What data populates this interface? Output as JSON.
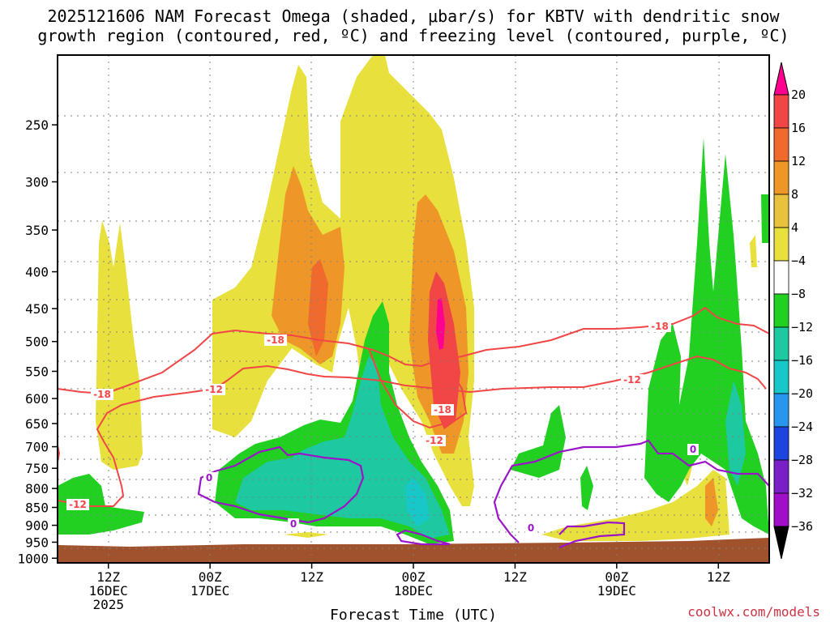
{
  "chart_data": {
    "type": "time-height cross-section (shaded field with contours)",
    "title_line1": "2025121606 NAM Forecast Omega (shaded, μbar/s) for KBTV with dendritic snow",
    "title_line2": "growth region (contoured, red, ºC) and freezing level (contoured, purple, ºC)",
    "xlabel": "Forecast Time (UTC)",
    "credit": "coolwx.com/models",
    "forecast_hour_range": [
      0,
      84
    ],
    "y_axis": {
      "unit": "hPa",
      "range": [
        1000,
        200
      ],
      "ticks": [
        250,
        300,
        350,
        400,
        450,
        500,
        550,
        600,
        650,
        700,
        750,
        800,
        850,
        900,
        950,
        1000
      ]
    },
    "x_ticks": [
      {
        "hour": 6,
        "line1": "12Z",
        "line2": "16DEC",
        "line3": "2025"
      },
      {
        "hour": 18,
        "line1": "00Z",
        "line2": "17DEC",
        "line3": ""
      },
      {
        "hour": 30,
        "line1": "12Z",
        "line2": "",
        "line3": ""
      },
      {
        "hour": 42,
        "line1": "00Z",
        "line2": "18DEC",
        "line3": ""
      },
      {
        "hour": 54,
        "line1": "12Z",
        "line2": "",
        "line3": ""
      },
      {
        "hour": 66,
        "line1": "00Z",
        "line2": "19DEC",
        "line3": ""
      },
      {
        "hour": 78,
        "line1": "12Z",
        "line2": "",
        "line3": ""
      }
    ],
    "colorbar": {
      "labels": [
        "20",
        "16",
        "12",
        "8",
        "4",
        "−4",
        "−8",
        "−12",
        "−16",
        "−20",
        "−24",
        "−28",
        "−32",
        "−36"
      ],
      "colors": [
        "#ff0090",
        "#f04646",
        "#ef6a2c",
        "#ee9628",
        "#e8c23c",
        "#e8e03c",
        "#ffffff",
        "#22d022",
        "#1ec8a0",
        "#18c8c8",
        "#2896ee",
        "#1e44e0",
        "#7a1ec8",
        "#a00ec8",
        "#b4b4b4",
        "#000000"
      ]
    },
    "contour_labels": {
      "dgz_red": [
        "-18",
        "-12"
      ],
      "freezing_purple": [
        "0"
      ]
    },
    "series_note": "Upward motion (positive, yellow-red) maxima ~20 near 00Z-06Z 18DEC at 450-550 hPa; sinking (green-teal) below 600 hPa."
  }
}
